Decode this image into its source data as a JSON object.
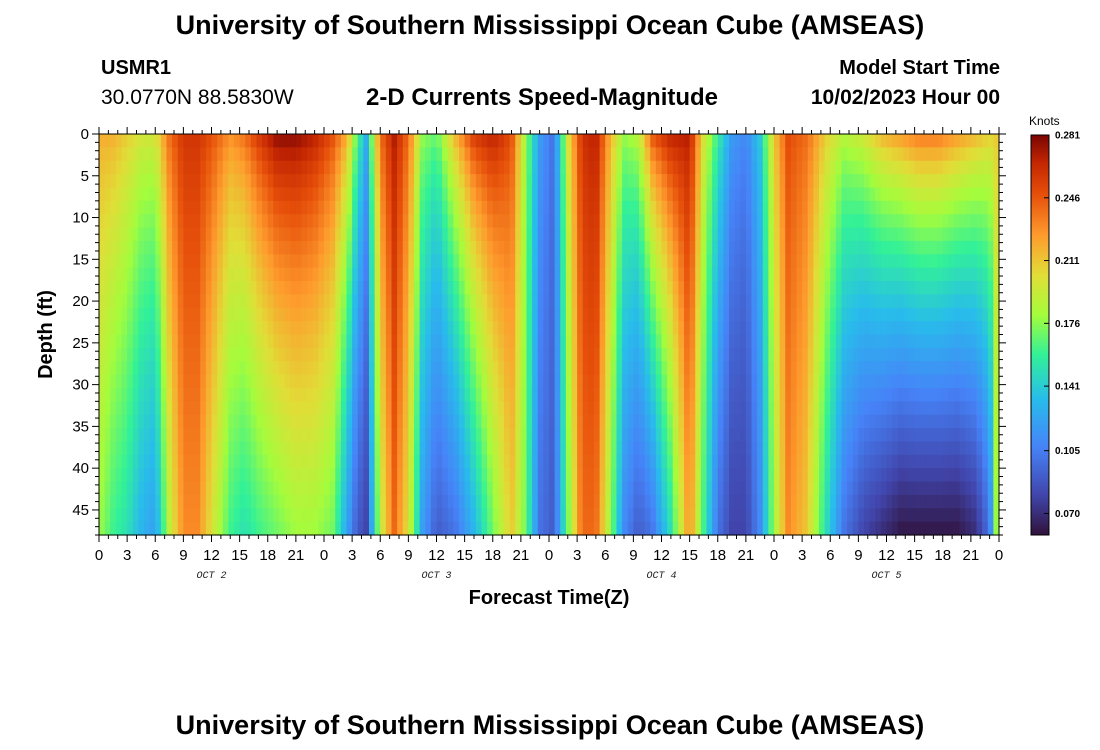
{
  "header": {
    "title": "University of Southern Mississippi Ocean Cube (AMSEAS)",
    "station_id": "USMR1",
    "station_coords": "30.0770N  88.5830W",
    "plot_title": "2-D Currents Speed-Magnitude",
    "model_start_label": "Model Start Time",
    "model_start_value": "10/02/2023 Hour 00"
  },
  "footer": {
    "title": "University of Southern Mississippi Ocean Cube (AMSEAS)"
  },
  "colors": {
    "background": "#ffffff",
    "axis": "#000000"
  },
  "chart_data": {
    "type": "heatmap",
    "title": "2-D Currents Speed-Magnitude",
    "xlabel": "Forecast Time(Z)",
    "ylabel": "Depth (ft)",
    "x_ticks": [
      "0",
      "3",
      "6",
      "9",
      "12",
      "15",
      "18",
      "21",
      "0",
      "3",
      "6",
      "9",
      "12",
      "15",
      "18",
      "21",
      "0",
      "3",
      "6",
      "9",
      "12",
      "15",
      "18",
      "21",
      "0",
      "3",
      "6",
      "9",
      "12",
      "15",
      "18",
      "21",
      "0"
    ],
    "x_range_hours": [
      0,
      96
    ],
    "day_labels": [
      {
        "label": "OCT 2",
        "hour": 12
      },
      {
        "label": "OCT 3",
        "hour": 36
      },
      {
        "label": "OCT 4",
        "hour": 60
      },
      {
        "label": "OCT 5",
        "hour": 84
      }
    ],
    "y_ticks": [
      "0",
      "5",
      "10",
      "15",
      "20",
      "25",
      "30",
      "35",
      "40",
      "45"
    ],
    "y_range": [
      0,
      48
    ],
    "y_inverted": true,
    "colorbar": {
      "unit": "Knots",
      "labels": [
        "0.281",
        "0.246",
        "0.211",
        "0.176",
        "0.141",
        "0.105",
        "0.070"
      ],
      "range": [
        0.058,
        0.281
      ]
    },
    "columns": [
      {
        "hour": 0.0,
        "top": 0.22,
        "bottom": 0.18
      },
      {
        "hour": 1.5,
        "top": 0.22,
        "bottom": 0.16
      },
      {
        "hour": 3.0,
        "top": 0.21,
        "bottom": 0.15
      },
      {
        "hour": 4.5,
        "top": 0.2,
        "bottom": 0.13
      },
      {
        "hour": 6.0,
        "top": 0.2,
        "bottom": 0.12
      },
      {
        "hour": 7.5,
        "top": 0.24,
        "bottom": 0.19
      },
      {
        "hour": 9.0,
        "top": 0.26,
        "bottom": 0.23
      },
      {
        "hour": 10.5,
        "top": 0.26,
        "bottom": 0.23
      },
      {
        "hour": 12.0,
        "top": 0.25,
        "bottom": 0.2
      },
      {
        "hour": 14.0,
        "top": 0.23,
        "bottom": 0.16
      },
      {
        "hour": 15.5,
        "top": 0.24,
        "bottom": 0.15
      },
      {
        "hour": 17.0,
        "top": 0.26,
        "bottom": 0.16
      },
      {
        "hour": 19.0,
        "top": 0.28,
        "bottom": 0.17
      },
      {
        "hour": 21.0,
        "top": 0.28,
        "bottom": 0.18
      },
      {
        "hour": 23.0,
        "top": 0.27,
        "bottom": 0.18
      },
      {
        "hour": 25.0,
        "top": 0.25,
        "bottom": 0.17
      },
      {
        "hour": 26.5,
        "top": 0.22,
        "bottom": 0.12
      },
      {
        "hour": 27.5,
        "top": 0.17,
        "bottom": 0.09
      },
      {
        "hour": 28.5,
        "top": 0.13,
        "bottom": 0.08
      },
      {
        "hour": 30.0,
        "top": 0.24,
        "bottom": 0.19
      },
      {
        "hour": 31.5,
        "top": 0.27,
        "bottom": 0.24
      },
      {
        "hour": 33.0,
        "top": 0.24,
        "bottom": 0.2
      },
      {
        "hour": 34.5,
        "top": 0.18,
        "bottom": 0.12
      },
      {
        "hour": 36.0,
        "top": 0.17,
        "bottom": 0.09
      },
      {
        "hour": 38.0,
        "top": 0.22,
        "bottom": 0.1
      },
      {
        "hour": 40.0,
        "top": 0.26,
        "bottom": 0.13
      },
      {
        "hour": 42.0,
        "top": 0.27,
        "bottom": 0.17
      },
      {
        "hour": 44.0,
        "top": 0.25,
        "bottom": 0.21
      },
      {
        "hour": 45.5,
        "top": 0.18,
        "bottom": 0.17
      },
      {
        "hour": 47.0,
        "top": 0.12,
        "bottom": 0.1
      },
      {
        "hour": 48.5,
        "top": 0.1,
        "bottom": 0.09
      },
      {
        "hour": 50.0,
        "top": 0.2,
        "bottom": 0.17
      },
      {
        "hour": 51.5,
        "top": 0.26,
        "bottom": 0.24
      },
      {
        "hour": 53.0,
        "top": 0.27,
        "bottom": 0.24
      },
      {
        "hour": 54.5,
        "top": 0.22,
        "bottom": 0.18
      },
      {
        "hour": 56.0,
        "top": 0.18,
        "bottom": 0.11
      },
      {
        "hour": 57.5,
        "top": 0.19,
        "bottom": 0.09
      },
      {
        "hour": 59.0,
        "top": 0.25,
        "bottom": 0.1
      },
      {
        "hour": 61.0,
        "top": 0.27,
        "bottom": 0.15
      },
      {
        "hour": 63.0,
        "top": 0.27,
        "bottom": 0.23
      },
      {
        "hour": 64.5,
        "top": 0.2,
        "bottom": 0.16
      },
      {
        "hour": 66.0,
        "top": 0.16,
        "bottom": 0.1
      },
      {
        "hour": 67.5,
        "top": 0.12,
        "bottom": 0.08
      },
      {
        "hour": 69.0,
        "top": 0.11,
        "bottom": 0.08
      },
      {
        "hour": 70.5,
        "top": 0.14,
        "bottom": 0.11
      },
      {
        "hour": 72.0,
        "top": 0.21,
        "bottom": 0.18
      },
      {
        "hour": 73.5,
        "top": 0.25,
        "bottom": 0.23
      },
      {
        "hour": 75.5,
        "top": 0.24,
        "bottom": 0.21
      },
      {
        "hour": 77.5,
        "top": 0.21,
        "bottom": 0.15
      },
      {
        "hour": 79.5,
        "top": 0.19,
        "bottom": 0.1
      },
      {
        "hour": 81.5,
        "top": 0.2,
        "bottom": 0.08
      },
      {
        "hour": 83.5,
        "top": 0.22,
        "bottom": 0.07
      },
      {
        "hour": 85.5,
        "top": 0.23,
        "bottom": 0.06
      },
      {
        "hour": 87.5,
        "top": 0.24,
        "bottom": 0.06
      },
      {
        "hour": 89.5,
        "top": 0.24,
        "bottom": 0.06
      },
      {
        "hour": 91.5,
        "top": 0.23,
        "bottom": 0.06
      },
      {
        "hour": 93.5,
        "top": 0.22,
        "bottom": 0.07
      },
      {
        "hour": 95.0,
        "top": 0.21,
        "bottom": 0.1
      },
      {
        "hour": 96.0,
        "top": 0.21,
        "bottom": 0.21
      }
    ]
  }
}
